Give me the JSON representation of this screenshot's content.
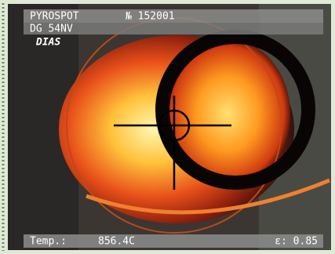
{
  "header": {
    "device": "PYROSPOT",
    "serial": "№ 152001",
    "model": "DG 54NV",
    "brand": "DIAS"
  },
  "footer": {
    "temp_label": "Temp.:",
    "temp_value": "856.4C",
    "emissivity": "ε: 0.85"
  }
}
